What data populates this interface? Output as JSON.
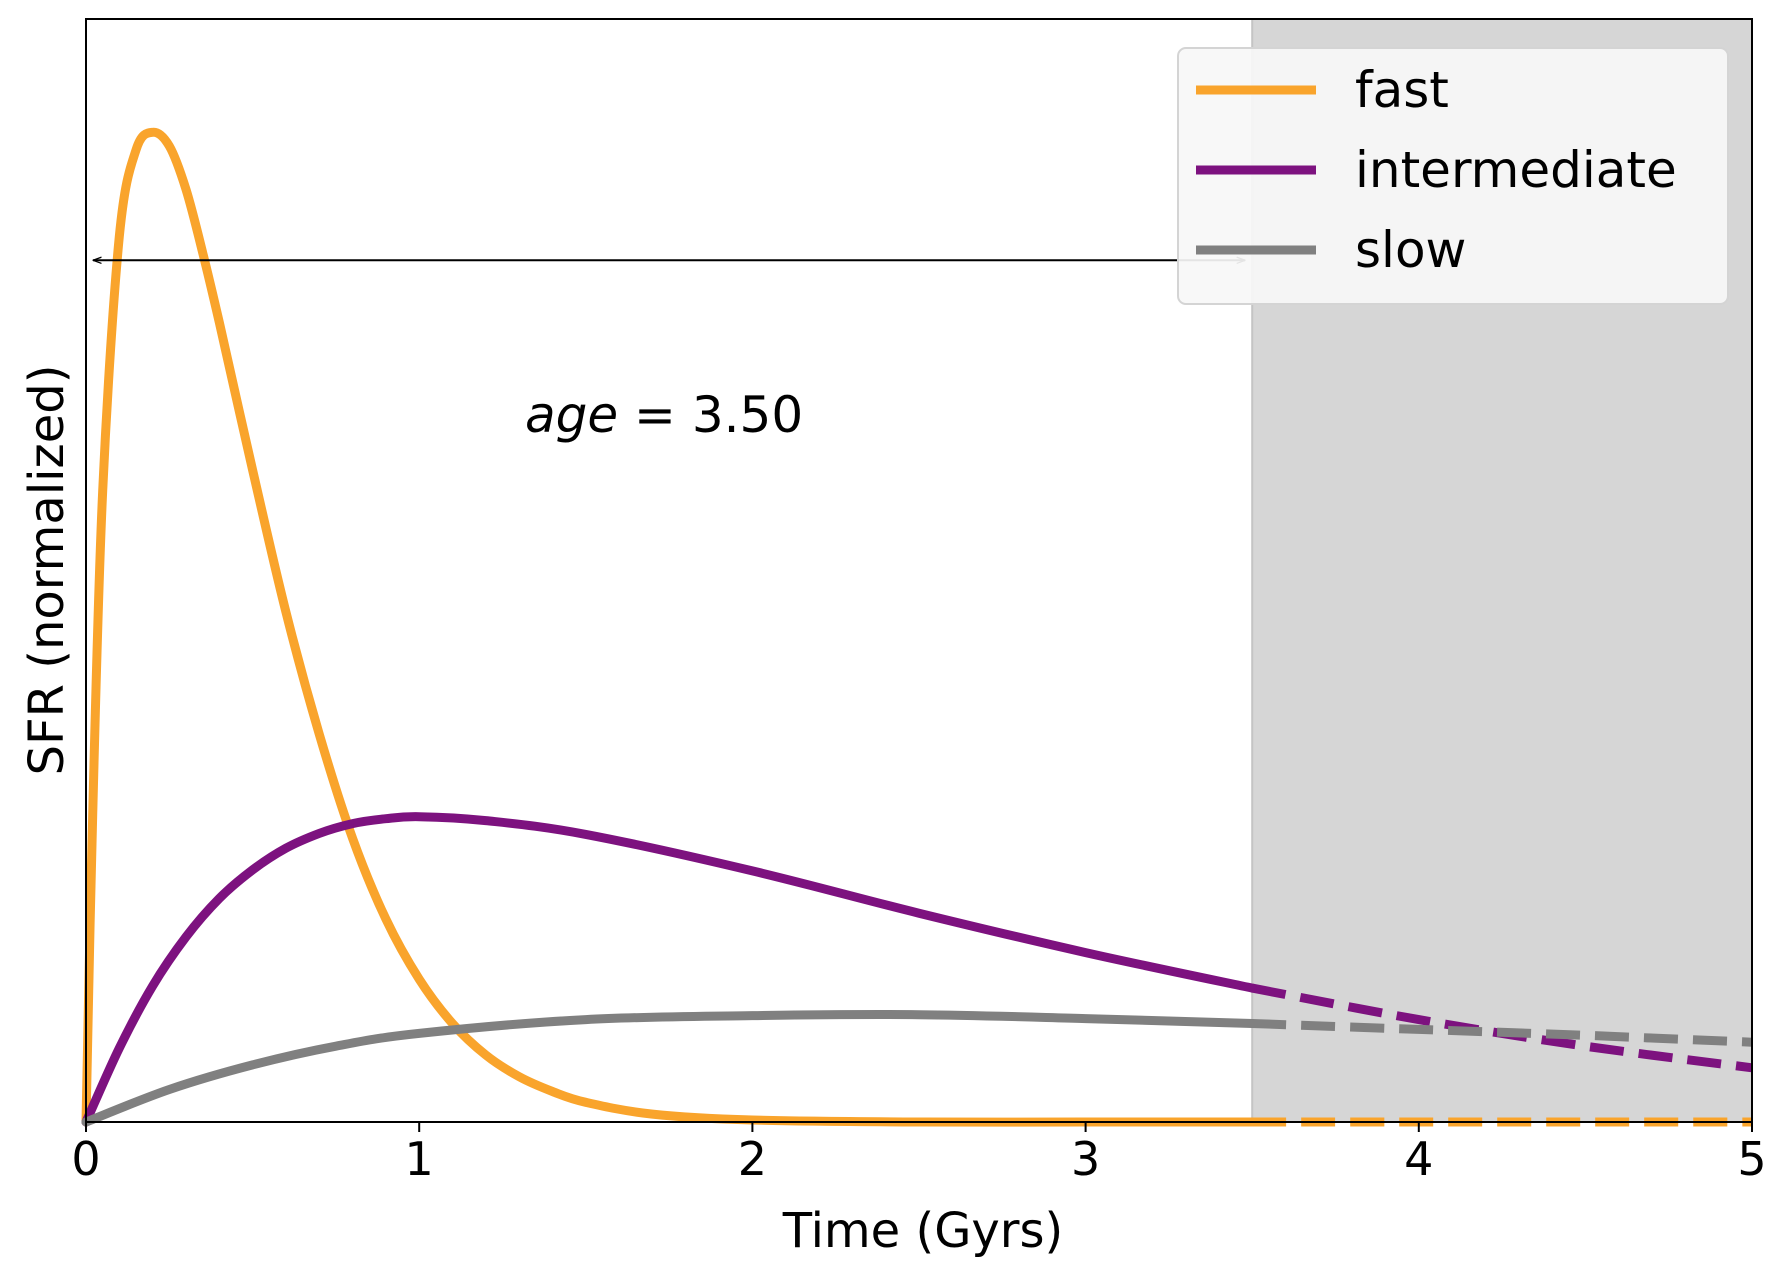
{
  "chart_data": {
    "type": "line",
    "xlabel": "Time (Gyrs)",
    "ylabel": "SFR (normalized)",
    "xlim": [
      0,
      5
    ],
    "ylim": [
      0,
      1.12
    ],
    "xticks": [
      "0",
      "1",
      "2",
      "3",
      "4",
      "5"
    ],
    "yticks_shown": false,
    "grid": false,
    "legend_position": "top-right",
    "shaded_region": {
      "x_start": 3.5,
      "x_end": 5,
      "color": "#d6d6d6"
    },
    "annotation": {
      "text_italic": "age",
      "text_rest": " = 3.50",
      "x_start": 0,
      "x_end": 3.5,
      "y": 0.875
    },
    "line_style_note": "solid for t ≤ age, dashed for t > age",
    "series": [
      {
        "name": "fast",
        "color": "#f9a42c",
        "x": [
          0,
          0.02,
          0.05,
          0.1,
          0.15,
          0.2,
          0.25,
          0.3,
          0.35,
          0.4,
          0.5,
          0.6,
          0.7,
          0.8,
          0.9,
          1.0,
          1.1,
          1.2,
          1.3,
          1.4,
          1.5,
          1.7,
          2.0,
          2.5,
          3.0,
          3.5,
          4.0,
          4.5,
          5.0
        ],
        "y": [
          0,
          0.312,
          0.641,
          0.899,
          0.987,
          1.005,
          0.991,
          0.947,
          0.883,
          0.812,
          0.662,
          0.518,
          0.394,
          0.288,
          0.206,
          0.145,
          0.1,
          0.068,
          0.046,
          0.031,
          0.02,
          0.008,
          0.002,
          0,
          0,
          0,
          0,
          0,
          0
        ]
      },
      {
        "name": "intermediate",
        "color": "#7d127f",
        "x": [
          0,
          0.1,
          0.2,
          0.3,
          0.4,
          0.5,
          0.6,
          0.7,
          0.8,
          0.9,
          1.0,
          1.2,
          1.5,
          2.0,
          2.5,
          3.0,
          3.5,
          4.0,
          4.5,
          5.0
        ],
        "y": [
          0,
          0.075,
          0.138,
          0.188,
          0.227,
          0.256,
          0.278,
          0.293,
          0.303,
          0.308,
          0.31,
          0.306,
          0.292,
          0.255,
          0.212,
          0.172,
          0.136,
          0.104,
          0.077,
          0.055
        ]
      },
      {
        "name": "slow",
        "color": "#808080",
        "x": [
          0,
          0.25,
          0.5,
          0.75,
          1.0,
          1.5,
          2.0,
          2.5,
          3.0,
          3.5,
          4.0,
          4.5,
          5.0
        ],
        "y": [
          0,
          0.033,
          0.058,
          0.077,
          0.09,
          0.104,
          0.108,
          0.109,
          0.105,
          0.1,
          0.094,
          0.088,
          0.081
        ]
      }
    ]
  }
}
